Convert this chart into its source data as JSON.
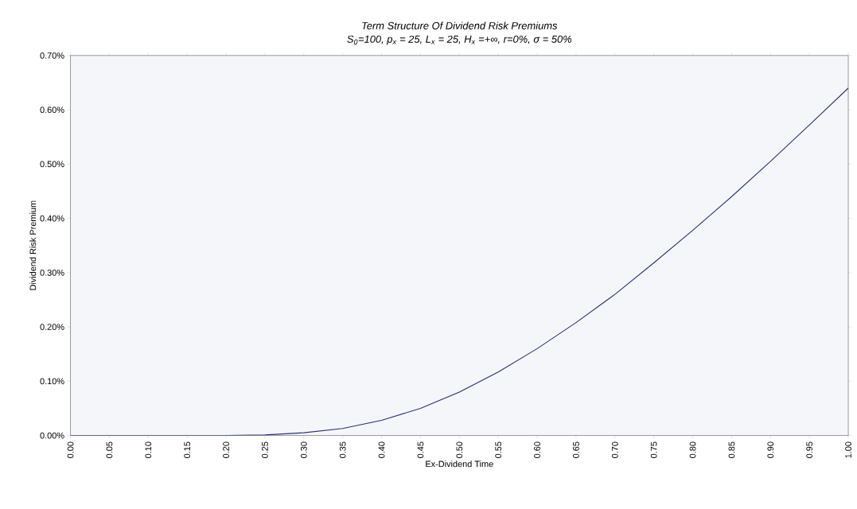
{
  "chart_data": {
    "type": "line",
    "title": "Term Structure Of Dividend Risk Premiums",
    "subtitle": "S$_{0}$=100, p$_{x}$ = 25, L$_{x}$ = 25, H$_{x}$ =+∞, r=0%,  σ = 50%",
    "xlabel": "Ex-Dividend Time",
    "ylabel": "Dividend Risk Premium",
    "x": [
      0,
      0.05,
      0.1,
      0.15,
      0.2,
      0.25,
      0.3,
      0.35,
      0.4,
      0.45,
      0.5,
      0.55,
      0.6,
      0.65,
      0.7,
      0.75,
      0.8,
      0.85,
      0.9,
      0.95,
      1.0
    ],
    "series": [
      {
        "color": "#2b2f7a",
        "values": [
          0,
          0,
          0,
          0,
          0,
          0.001,
          0.005,
          0.013,
          0.028,
          0.05,
          0.08,
          0.117,
          0.16,
          0.208,
          0.26,
          0.318,
          0.378,
          0.44,
          0.505,
          0.572,
          0.64
        ]
      }
    ],
    "xlim": [
      0,
      1
    ],
    "ylim": [
      0,
      0.7
    ],
    "xticks": [
      {
        "value": 0,
        "label": "0.00"
      },
      {
        "value": 0.05,
        "label": "0.05"
      },
      {
        "value": 0.1,
        "label": "0.10"
      },
      {
        "value": 0.15,
        "label": "0.15"
      },
      {
        "value": 0.2,
        "label": "0.20"
      },
      {
        "value": 0.25,
        "label": "0.25"
      },
      {
        "value": 0.3,
        "label": "0.30"
      },
      {
        "value": 0.35,
        "label": "0.35"
      },
      {
        "value": 0.4,
        "label": "0.40"
      },
      {
        "value": 0.45,
        "label": "0.45"
      },
      {
        "value": 0.5,
        "label": "0.50"
      },
      {
        "value": 0.55,
        "label": "0.55"
      },
      {
        "value": 0.6,
        "label": "0.60"
      },
      {
        "value": 0.65,
        "label": "0.65"
      },
      {
        "value": 0.7,
        "label": "0.70"
      },
      {
        "value": 0.75,
        "label": "0.75"
      },
      {
        "value": 0.8,
        "label": "0.80"
      },
      {
        "value": 0.85,
        "label": "0.85"
      },
      {
        "value": 0.9,
        "label": "0.90"
      },
      {
        "value": 0.95,
        "label": "0.95"
      },
      {
        "value": 1.0,
        "label": "1.00"
      }
    ],
    "yticks": [
      {
        "value": 0,
        "label": "0.00%"
      },
      {
        "value": 0.1,
        "label": "0.10%"
      },
      {
        "value": 0.2,
        "label": "0.20%"
      },
      {
        "value": 0.3,
        "label": "0.30%"
      },
      {
        "value": 0.4,
        "label": "0.40%"
      },
      {
        "value": 0.5,
        "label": "0.50%"
      },
      {
        "value": 0.6,
        "label": "0.60%"
      },
      {
        "value": 0.7,
        "label": "0.70%"
      }
    ],
    "grid": false,
    "marker": "none",
    "line_style": "solid"
  }
}
